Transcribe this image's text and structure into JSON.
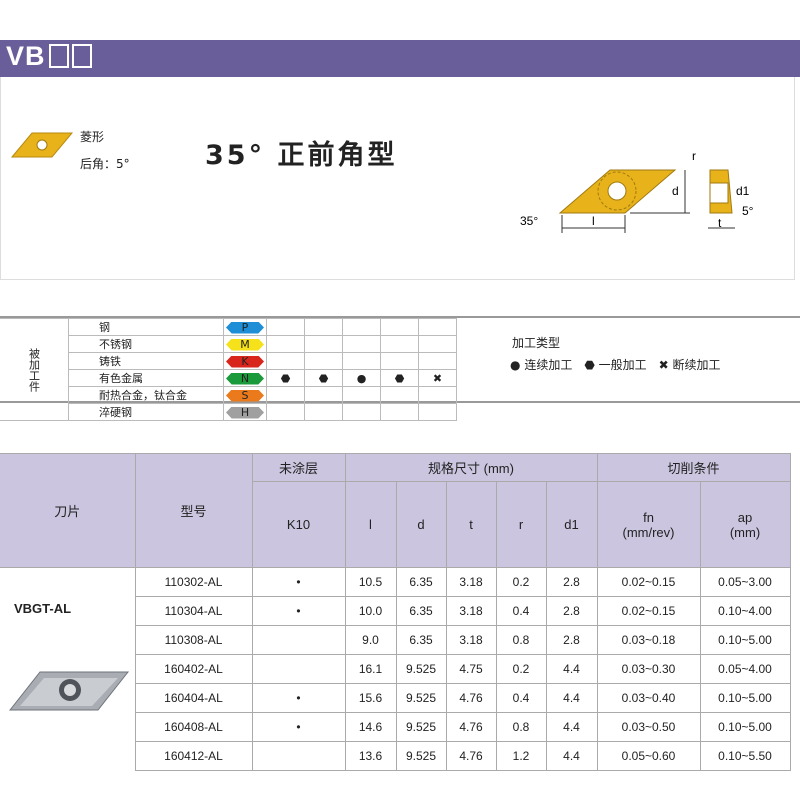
{
  "header": {
    "title": "VB"
  },
  "intro": {
    "shape": "菱形",
    "clearance": "后角：5°",
    "title": "35°  正前角型",
    "diagram_labels": {
      "r": "r",
      "d": "d",
      "d1": "d1",
      "angle": "35°",
      "l": "l",
      "t": "t",
      "clearance": "5°"
    }
  },
  "materials": {
    "label": "被加工件",
    "rows": [
      {
        "name": "钢",
        "code": "P",
        "color": "#1e8fd6",
        "marks": [
          "",
          "",
          "",
          "",
          ""
        ]
      },
      {
        "name": "不锈钢",
        "code": "M",
        "color": "#f5e21a",
        "marks": [
          "",
          "",
          "",
          "",
          ""
        ]
      },
      {
        "name": "铸铁",
        "code": "K",
        "color": "#d9261c",
        "marks": [
          "",
          "",
          "",
          "",
          ""
        ]
      },
      {
        "name": "有色金属",
        "code": "N",
        "color": "#1a9a3a",
        "marks": [
          "general",
          "general",
          "continuous",
          "general",
          "interrupted"
        ]
      },
      {
        "name": "耐热合金，钛合金",
        "code": "S",
        "color": "#ea7a1c",
        "marks": [
          "",
          "",
          "",
          "",
          ""
        ]
      },
      {
        "name": "淬硬钢",
        "code": "H",
        "color": "#a0a0a0",
        "marks": [
          "",
          "",
          "",
          "",
          ""
        ]
      }
    ]
  },
  "legend": {
    "title": "加工类型",
    "items": [
      {
        "icon": "continuous",
        "label": "连续加工"
      },
      {
        "icon": "general",
        "label": "一般加工"
      },
      {
        "icon": "interrupted",
        "label": "断续加工"
      }
    ]
  },
  "spec": {
    "headers": {
      "insert": "刀片",
      "model": "型号",
      "uncoated": "未涂层",
      "dims": "规格尺寸   (mm)",
      "cutting": "切削条件",
      "grade": "K10",
      "l": "l",
      "d": "d",
      "t": "t",
      "r": "r",
      "d1": "d1",
      "fn": "fn\n(mm/rev)",
      "ap": "ap\n(mm)"
    },
    "series": "VBGT-AL",
    "rows": [
      {
        "model": "110302-AL",
        "k10": "•",
        "l": "10.5",
        "d": "6.35",
        "t": "3.18",
        "r": "0.2",
        "d1": "2.8",
        "fn": "0.02~0.15",
        "ap": "0.05~3.00"
      },
      {
        "model": "110304-AL",
        "k10": "•",
        "l": "10.0",
        "d": "6.35",
        "t": "3.18",
        "r": "0.4",
        "d1": "2.8",
        "fn": "0.02~0.15",
        "ap": "0.10~4.00"
      },
      {
        "model": "110308-AL",
        "k10": "",
        "l": "9.0",
        "d": "6.35",
        "t": "3.18",
        "r": "0.8",
        "d1": "2.8",
        "fn": "0.03~0.18",
        "ap": "0.10~5.00"
      },
      {
        "model": "160402-AL",
        "k10": "",
        "l": "16.1",
        "d": "9.525",
        "t": "4.75",
        "r": "0.2",
        "d1": "4.4",
        "fn": "0.03~0.30",
        "ap": "0.05~4.00"
      },
      {
        "model": "160404-AL",
        "k10": "•",
        "l": "15.6",
        "d": "9.525",
        "t": "4.76",
        "r": "0.4",
        "d1": "4.4",
        "fn": "0.03~0.40",
        "ap": "0.10~5.00"
      },
      {
        "model": "160408-AL",
        "k10": "•",
        "l": "14.6",
        "d": "9.525",
        "t": "4.76",
        "r": "0.8",
        "d1": "4.4",
        "fn": "0.03~0.50",
        "ap": "0.10~5.00"
      },
      {
        "model": "160412-AL",
        "k10": "",
        "l": "13.6",
        "d": "9.525",
        "t": "4.76",
        "r": "1.2",
        "d1": "4.4",
        "fn": "0.05~0.60",
        "ap": "0.10~5.50"
      }
    ]
  },
  "colors": {
    "header_bar": "#6a5e9a",
    "table_header": "#cbc5df",
    "insert": "#e8b21a"
  }
}
